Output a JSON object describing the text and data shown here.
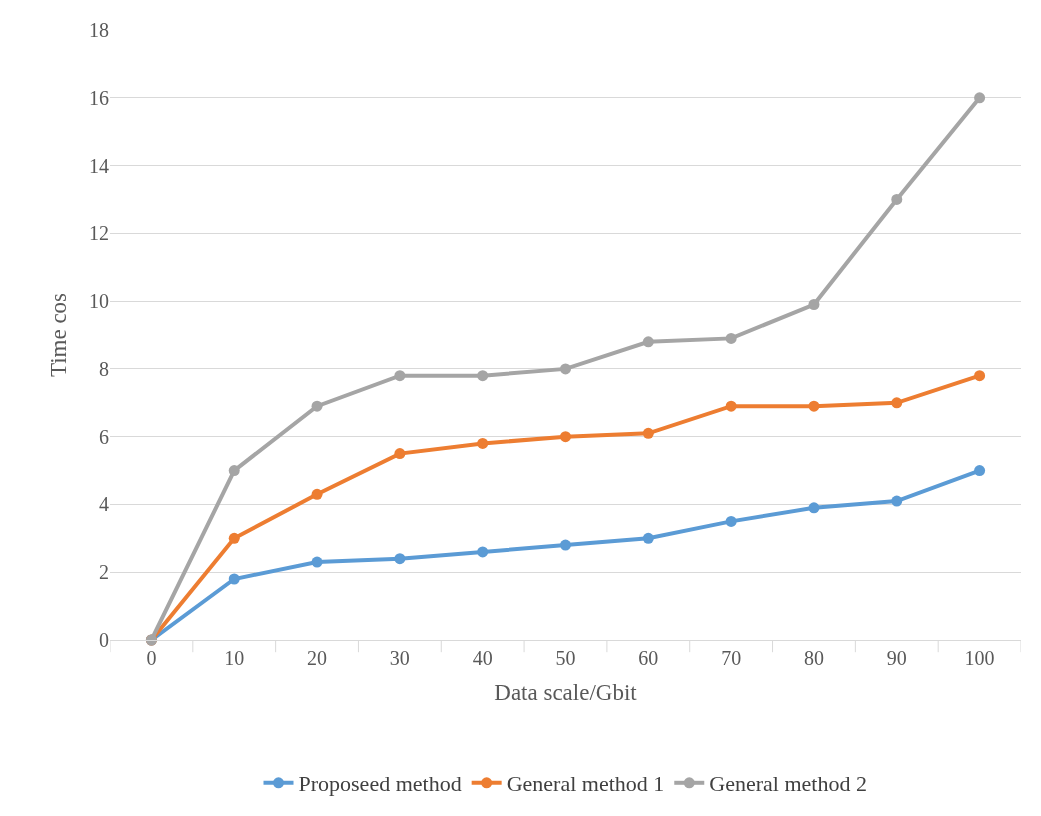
{
  "chart_data": {
    "type": "line",
    "xlabel": "Data scale/Gbit",
    "ylabel": "Time cos",
    "categories": [
      "0",
      "10",
      "20",
      "30",
      "40",
      "50",
      "60",
      "70",
      "80",
      "90",
      "100"
    ],
    "series": [
      {
        "name": "Proposeed method",
        "color": "#5b9bd5",
        "values": [
          0,
          1.8,
          2.3,
          2.4,
          2.6,
          2.8,
          3.0,
          3.5,
          3.9,
          4.1,
          5.0
        ]
      },
      {
        "name": "General method 1",
        "color": "#ed7d31",
        "values": [
          0,
          3.0,
          4.3,
          5.5,
          5.8,
          6.0,
          6.1,
          6.9,
          6.9,
          7.0,
          7.8
        ]
      },
      {
        "name": "General method 2",
        "color": "#a5a5a5",
        "values": [
          0,
          5.0,
          6.9,
          7.8,
          7.8,
          8.0,
          8.8,
          8.9,
          9.9,
          13.0,
          16.0
        ]
      }
    ],
    "ylim": [
      0,
      18
    ],
    "yticks": [
      0,
      2,
      4,
      6,
      8,
      10,
      12,
      14,
      16,
      18
    ],
    "grid": "y",
    "legend": "bottom",
    "marker": "circle",
    "line_style": "solid"
  }
}
